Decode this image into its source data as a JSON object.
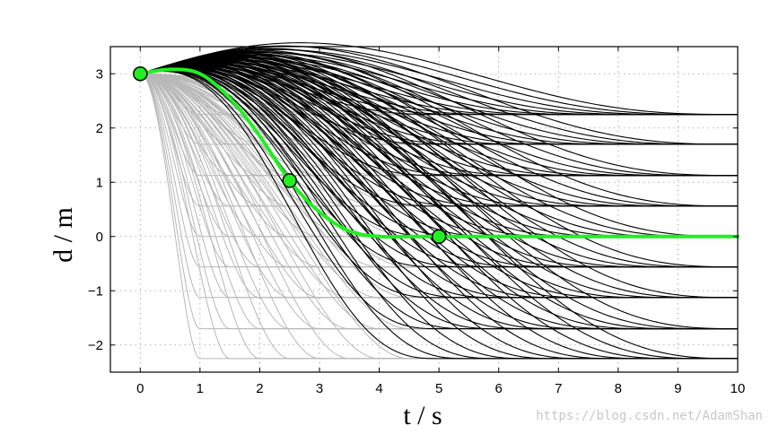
{
  "chart_data": {
    "type": "line",
    "title": "",
    "xlabel": "t / s",
    "ylabel": "d / m",
    "xlim": [
      -0.5,
      10
    ],
    "ylim": [
      -2.5,
      3.5
    ],
    "xticks": [
      0,
      1,
      2,
      3,
      4,
      5,
      6,
      7,
      8,
      9,
      10
    ],
    "yticks": [
      -2,
      -1,
      0,
      1,
      2,
      3
    ],
    "grid": "dotted",
    "legend": "none",
    "start": {
      "t": 0,
      "d": 3
    },
    "end_offsets": [
      2.25,
      1.7,
      1.125,
      0.56,
      0,
      -0.56,
      -1.125,
      -1.7,
      -2.25
    ],
    "gray_durations": [
      1,
      1.5,
      2,
      2.5,
      3,
      3.5,
      4,
      4.5
    ],
    "black_durations": [
      5,
      5.5,
      6,
      6.5,
      7,
      7.5,
      8,
      8.5,
      9,
      9.5,
      10
    ],
    "highlight_path": {
      "color": "#22ee22",
      "points": [
        {
          "t": 0,
          "d": 3
        },
        {
          "t": 2.5,
          "d": 1.03
        },
        {
          "t": 5,
          "d": 0
        }
      ],
      "x": [
        0,
        0.5,
        1,
        1.5,
        2,
        2.5,
        3,
        3.5,
        4,
        4.5,
        5,
        6,
        7,
        8,
        9,
        10
      ],
      "y": [
        3,
        3.08,
        3.0,
        2.55,
        1.85,
        1.03,
        0.45,
        0.1,
        0.0,
        0.0,
        0,
        0,
        0,
        0,
        0,
        0
      ]
    },
    "colors": {
      "black_series": "#000000",
      "gray_series": "#b8b8b8",
      "highlight": "#22ee22"
    }
  },
  "watermark": "https://blog.csdn.net/AdamShan"
}
